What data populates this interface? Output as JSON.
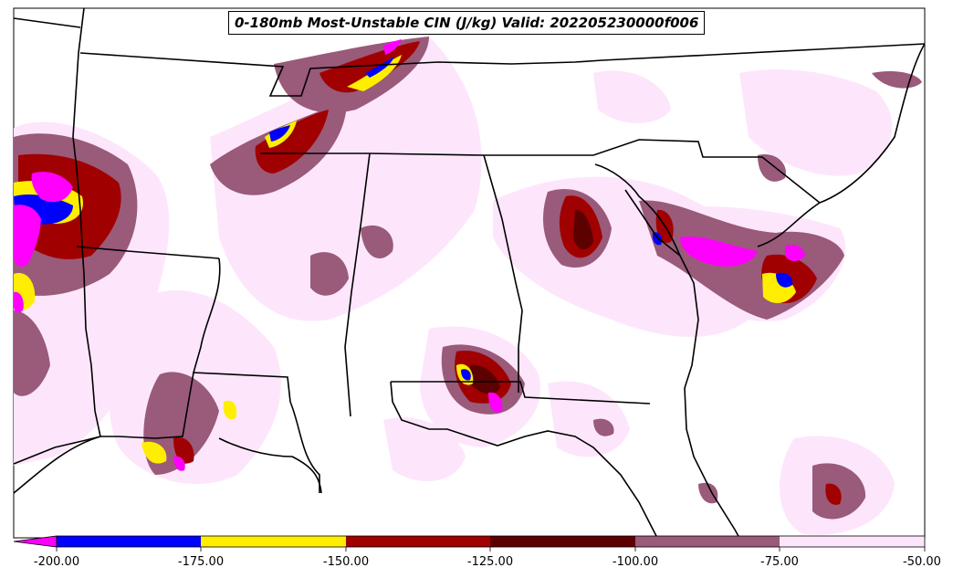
{
  "title": "0-180mb Most-Unstable CIN (J/kg) Valid: 202205230000f006",
  "colorbar": {
    "tick_labels": [
      "-200.00",
      "-175.00",
      "-150.00",
      "-125.00",
      "-100.00",
      "-75.00",
      "-50.00"
    ],
    "bins": [
      {
        "range": "< -200",
        "color": "#ff00ff"
      },
      {
        "range": "-200 to -175",
        "color": "#0000ff"
      },
      {
        "range": "-175 to -150",
        "color": "#ffee00"
      },
      {
        "range": "-150 to -125",
        "color": "#a00000"
      },
      {
        "range": "-125 to -100",
        "color": "#5c0000"
      },
      {
        "range": "-100 to -75",
        "color": "#9a5a7a"
      },
      {
        "range": "-75 to -50",
        "color": "#fde6fb"
      }
    ]
  },
  "colors": {
    "very_strong": "#ff00ff",
    "strong": "#0000ff",
    "moderate_strong": "#ffee00",
    "moderate": "#a00000",
    "dark_moderate": "#5c0000",
    "weak": "#9a5a7a",
    "very_weak": "#fde6fb",
    "borders": "#000000"
  }
}
